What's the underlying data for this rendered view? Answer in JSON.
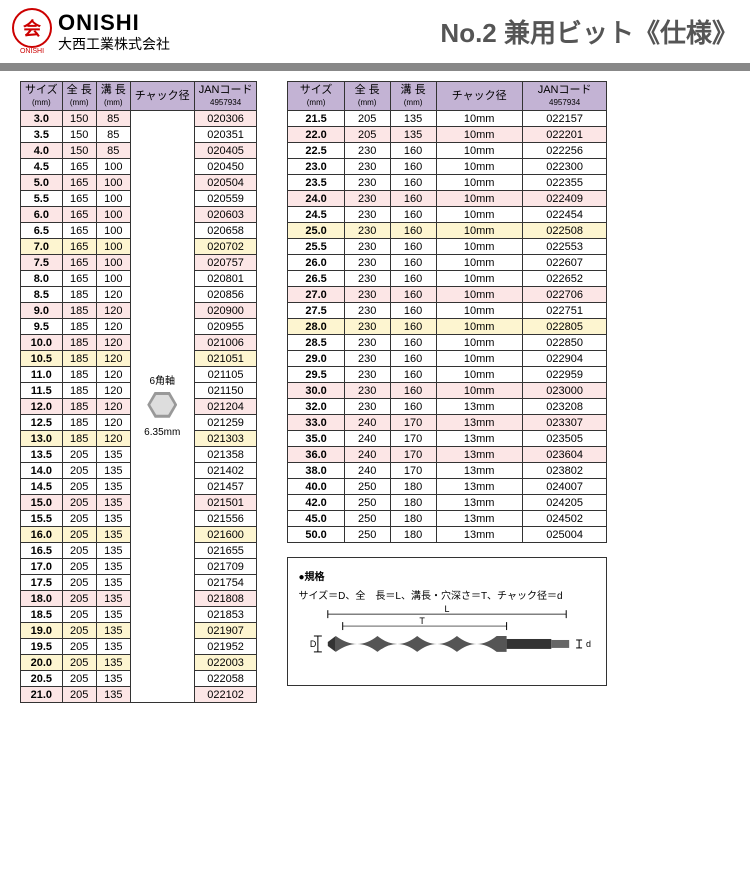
{
  "header": {
    "logo_char": "会",
    "logo_sub": "ONISHI",
    "company_en": "ONISHI",
    "company_jp": "大西工業株式会社",
    "title": "No.2 兼用ビット《仕様》"
  },
  "columns": {
    "size": "サイズ",
    "size_unit": "(mm)",
    "length": "全 長",
    "length_unit": "(mm)",
    "groove": "溝 長",
    "groove_unit": "(mm)",
    "chuck": "チャック径",
    "jan": "JANコード",
    "jan_sub": "4957934"
  },
  "chuck_label": "6角軸",
  "chuck_size": "6.35mm",
  "table1": [
    {
      "s": "3.0",
      "l": "150",
      "g": "85",
      "j": "020306",
      "c": "pink"
    },
    {
      "s": "3.5",
      "l": "150",
      "g": "85",
      "j": "020351",
      "c": ""
    },
    {
      "s": "4.0",
      "l": "150",
      "g": "85",
      "j": "020405",
      "c": "pink"
    },
    {
      "s": "4.5",
      "l": "165",
      "g": "100",
      "j": "020450",
      "c": ""
    },
    {
      "s": "5.0",
      "l": "165",
      "g": "100",
      "j": "020504",
      "c": "pink"
    },
    {
      "s": "5.5",
      "l": "165",
      "g": "100",
      "j": "020559",
      "c": ""
    },
    {
      "s": "6.0",
      "l": "165",
      "g": "100",
      "j": "020603",
      "c": "pink"
    },
    {
      "s": "6.5",
      "l": "165",
      "g": "100",
      "j": "020658",
      "c": ""
    },
    {
      "s": "7.0",
      "l": "165",
      "g": "100",
      "j": "020702",
      "c": "yellow"
    },
    {
      "s": "7.5",
      "l": "165",
      "g": "100",
      "j": "020757",
      "c": "pink"
    },
    {
      "s": "8.0",
      "l": "165",
      "g": "100",
      "j": "020801",
      "c": ""
    },
    {
      "s": "8.5",
      "l": "185",
      "g": "120",
      "j": "020856",
      "c": ""
    },
    {
      "s": "9.0",
      "l": "185",
      "g": "120",
      "j": "020900",
      "c": "pink"
    },
    {
      "s": "9.5",
      "l": "185",
      "g": "120",
      "j": "020955",
      "c": ""
    },
    {
      "s": "10.0",
      "l": "185",
      "g": "120",
      "j": "021006",
      "c": "pink"
    },
    {
      "s": "10.5",
      "l": "185",
      "g": "120",
      "j": "021051",
      "c": "yellow"
    },
    {
      "s": "11.0",
      "l": "185",
      "g": "120",
      "j": "021105",
      "c": ""
    },
    {
      "s": "11.5",
      "l": "185",
      "g": "120",
      "j": "021150",
      "c": ""
    },
    {
      "s": "12.0",
      "l": "185",
      "g": "120",
      "j": "021204",
      "c": "pink"
    },
    {
      "s": "12.5",
      "l": "185",
      "g": "120",
      "j": "021259",
      "c": ""
    },
    {
      "s": "13.0",
      "l": "185",
      "g": "120",
      "j": "021303",
      "c": "yellow"
    },
    {
      "s": "13.5",
      "l": "205",
      "g": "135",
      "j": "021358",
      "c": ""
    },
    {
      "s": "14.0",
      "l": "205",
      "g": "135",
      "j": "021402",
      "c": ""
    },
    {
      "s": "14.5",
      "l": "205",
      "g": "135",
      "j": "021457",
      "c": ""
    },
    {
      "s": "15.0",
      "l": "205",
      "g": "135",
      "j": "021501",
      "c": "pink"
    },
    {
      "s": "15.5",
      "l": "205",
      "g": "135",
      "j": "021556",
      "c": ""
    },
    {
      "s": "16.0",
      "l": "205",
      "g": "135",
      "j": "021600",
      "c": "yellow"
    },
    {
      "s": "16.5",
      "l": "205",
      "g": "135",
      "j": "021655",
      "c": ""
    },
    {
      "s": "17.0",
      "l": "205",
      "g": "135",
      "j": "021709",
      "c": ""
    },
    {
      "s": "17.5",
      "l": "205",
      "g": "135",
      "j": "021754",
      "c": ""
    },
    {
      "s": "18.0",
      "l": "205",
      "g": "135",
      "j": "021808",
      "c": "pink"
    },
    {
      "s": "18.5",
      "l": "205",
      "g": "135",
      "j": "021853",
      "c": ""
    },
    {
      "s": "19.0",
      "l": "205",
      "g": "135",
      "j": "021907",
      "c": "yellow"
    },
    {
      "s": "19.5",
      "l": "205",
      "g": "135",
      "j": "021952",
      "c": ""
    },
    {
      "s": "20.0",
      "l": "205",
      "g": "135",
      "j": "022003",
      "c": "yellow"
    },
    {
      "s": "20.5",
      "l": "205",
      "g": "135",
      "j": "022058",
      "c": ""
    },
    {
      "s": "21.0",
      "l": "205",
      "g": "135",
      "j": "022102",
      "c": "pink"
    }
  ],
  "table2": [
    {
      "s": "21.5",
      "l": "205",
      "g": "135",
      "ch": "10mm",
      "j": "022157",
      "c": ""
    },
    {
      "s": "22.0",
      "l": "205",
      "g": "135",
      "ch": "10mm",
      "j": "022201",
      "c": "pink"
    },
    {
      "s": "22.5",
      "l": "230",
      "g": "160",
      "ch": "10mm",
      "j": "022256",
      "c": ""
    },
    {
      "s": "23.0",
      "l": "230",
      "g": "160",
      "ch": "10mm",
      "j": "022300",
      "c": ""
    },
    {
      "s": "23.5",
      "l": "230",
      "g": "160",
      "ch": "10mm",
      "j": "022355",
      "c": ""
    },
    {
      "s": "24.0",
      "l": "230",
      "g": "160",
      "ch": "10mm",
      "j": "022409",
      "c": "pink"
    },
    {
      "s": "24.5",
      "l": "230",
      "g": "160",
      "ch": "10mm",
      "j": "022454",
      "c": ""
    },
    {
      "s": "25.0",
      "l": "230",
      "g": "160",
      "ch": "10mm",
      "j": "022508",
      "c": "yellow"
    },
    {
      "s": "25.5",
      "l": "230",
      "g": "160",
      "ch": "10mm",
      "j": "022553",
      "c": ""
    },
    {
      "s": "26.0",
      "l": "230",
      "g": "160",
      "ch": "10mm",
      "j": "022607",
      "c": ""
    },
    {
      "s": "26.5",
      "l": "230",
      "g": "160",
      "ch": "10mm",
      "j": "022652",
      "c": ""
    },
    {
      "s": "27.0",
      "l": "230",
      "g": "160",
      "ch": "10mm",
      "j": "022706",
      "c": "pink"
    },
    {
      "s": "27.5",
      "l": "230",
      "g": "160",
      "ch": "10mm",
      "j": "022751",
      "c": ""
    },
    {
      "s": "28.0",
      "l": "230",
      "g": "160",
      "ch": "10mm",
      "j": "022805",
      "c": "yellow"
    },
    {
      "s": "28.5",
      "l": "230",
      "g": "160",
      "ch": "10mm",
      "j": "022850",
      "c": ""
    },
    {
      "s": "29.0",
      "l": "230",
      "g": "160",
      "ch": "10mm",
      "j": "022904",
      "c": ""
    },
    {
      "s": "29.5",
      "l": "230",
      "g": "160",
      "ch": "10mm",
      "j": "022959",
      "c": ""
    },
    {
      "s": "30.0",
      "l": "230",
      "g": "160",
      "ch": "10mm",
      "j": "023000",
      "c": "pink"
    },
    {
      "s": "32.0",
      "l": "230",
      "g": "160",
      "ch": "13mm",
      "j": "023208",
      "c": ""
    },
    {
      "s": "33.0",
      "l": "240",
      "g": "170",
      "ch": "13mm",
      "j": "023307",
      "c": "pink"
    },
    {
      "s": "35.0",
      "l": "240",
      "g": "170",
      "ch": "13mm",
      "j": "023505",
      "c": ""
    },
    {
      "s": "36.0",
      "l": "240",
      "g": "170",
      "ch": "13mm",
      "j": "023604",
      "c": "pink"
    },
    {
      "s": "38.0",
      "l": "240",
      "g": "170",
      "ch": "13mm",
      "j": "023802",
      "c": ""
    },
    {
      "s": "40.0",
      "l": "250",
      "g": "180",
      "ch": "13mm",
      "j": "024007",
      "c": ""
    },
    {
      "s": "42.0",
      "l": "250",
      "g": "180",
      "ch": "13mm",
      "j": "024205",
      "c": ""
    },
    {
      "s": "45.0",
      "l": "250",
      "g": "180",
      "ch": "13mm",
      "j": "024502",
      "c": ""
    },
    {
      "s": "50.0",
      "l": "250",
      "g": "180",
      "ch": "13mm",
      "j": "025004",
      "c": ""
    }
  ],
  "spec": {
    "heading": "●規格",
    "desc": "サイズ＝D、全　長＝L、溝長・穴深さ＝T、チャック径＝d",
    "label_L": "L",
    "label_T": "T",
    "label_D": "D",
    "label_d": "d"
  }
}
